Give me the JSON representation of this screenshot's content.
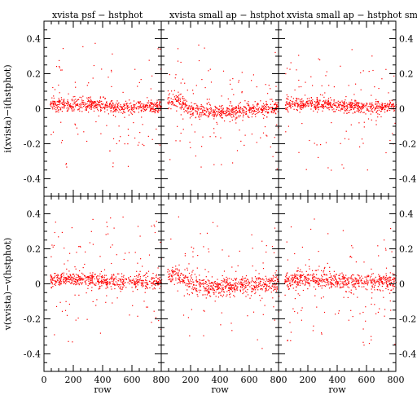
{
  "chart_data": {
    "type": "scatter",
    "marker_color": "#ff0000",
    "x_ticks": [
      0,
      200,
      400,
      600,
      800
    ],
    "y_ticks": [
      -0.4,
      -0.2,
      0,
      0.2,
      0.4
    ],
    "xlim": [
      0,
      800
    ],
    "ylim": [
      -0.5,
      0.5
    ],
    "xlabel": "row",
    "row_labels": [
      "i(xvista)−i(hstphot)",
      "v(xvista)−v(hstphot)"
    ],
    "panel_titles": [
      "xvista psf − hstphot",
      "xvista small ap − hstphot",
      "xvista small ap − hstphot small ap"
    ],
    "point_spread": [
      [
        0.03,
        0.035,
        0.03
      ],
      [
        0.035,
        0.045,
        0.04
      ]
    ]
  }
}
